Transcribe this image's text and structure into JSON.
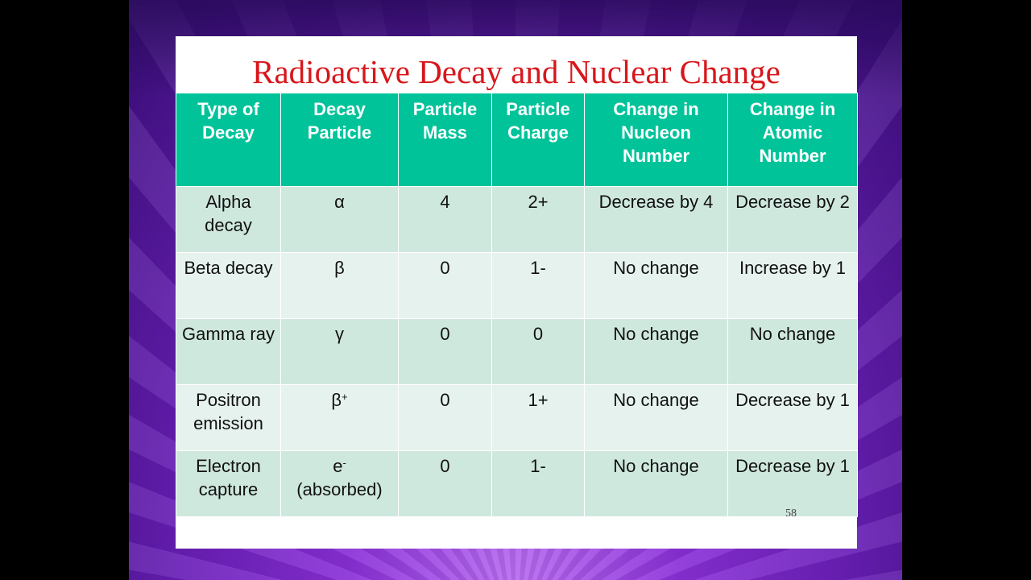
{
  "title": "Radioactive Decay and Nuclear Change",
  "table": {
    "headers": [
      "Type of Decay",
      "Decay Particle",
      "Particle Mass",
      "Particle Charge",
      "Change in Nucleon Number",
      "Change in Atomic Number"
    ],
    "rows": [
      {
        "type": "Alpha decay",
        "particle": "α",
        "particle_sup": "",
        "particle_note": "",
        "mass": "4",
        "charge": "2+",
        "nucleon": "Decrease by 4",
        "atomic": "Decrease by 2"
      },
      {
        "type": "Beta decay",
        "particle": "β",
        "particle_sup": "",
        "particle_note": "",
        "mass": "0",
        "charge": "1-",
        "nucleon": "No change",
        "atomic": "Increase by 1"
      },
      {
        "type": "Gamma ray",
        "particle": "γ",
        "particle_sup": "",
        "particle_note": "",
        "mass": "0",
        "charge": "0",
        "nucleon": "No change",
        "atomic": "No change"
      },
      {
        "type": "Positron emission",
        "particle": "β",
        "particle_sup": "+",
        "particle_note": "",
        "mass": "0",
        "charge": "1+",
        "nucleon": "No change",
        "atomic": "Decrease by 1"
      },
      {
        "type": "Electron capture",
        "particle": "e",
        "particle_sup": "-",
        "particle_note": "(absorbed)",
        "mass": "0",
        "charge": "1-",
        "nucleon": "No change",
        "atomic": "Decrease by 1"
      }
    ]
  },
  "page_number": "58",
  "colors": {
    "title": "#d8161b",
    "header_bg": "#00c39a",
    "row_dark": "#cfe8de",
    "row_light": "#e6f2ed",
    "background": "#8a30d8"
  }
}
